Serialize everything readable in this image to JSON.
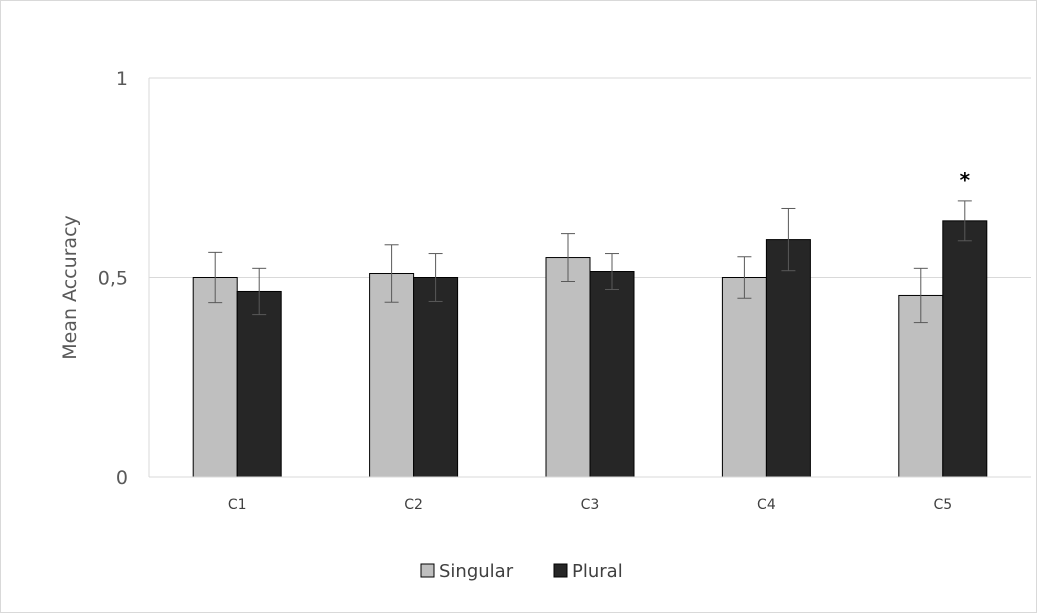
{
  "chart_data": {
    "type": "bar",
    "title": "",
    "xlabel": "",
    "ylabel": "Mean Accuracy",
    "ylim": [
      0,
      1
    ],
    "y_ticks": [
      {
        "value": 0,
        "label": "0"
      },
      {
        "value": 0.5,
        "label": "0,5"
      },
      {
        "value": 1,
        "label": "1"
      }
    ],
    "grid": true,
    "legend_position": "bottom",
    "categories": [
      "C1",
      "C2",
      "C3",
      "C4",
      "C5"
    ],
    "series": [
      {
        "name": "Singular",
        "color": "#bfbfbf",
        "values": [
          0.5,
          0.51,
          0.55,
          0.5,
          0.455
        ],
        "errors": [
          0.063,
          0.072,
          0.06,
          0.052,
          0.068
        ]
      },
      {
        "name": "Plural",
        "color": "#262626",
        "values": [
          0.465,
          0.5,
          0.515,
          0.595,
          0.642
        ],
        "errors": [
          0.058,
          0.06,
          0.045,
          0.078,
          0.05
        ]
      }
    ],
    "annotations": [
      {
        "category": "C5",
        "series": "Plural",
        "text": "*"
      }
    ]
  }
}
